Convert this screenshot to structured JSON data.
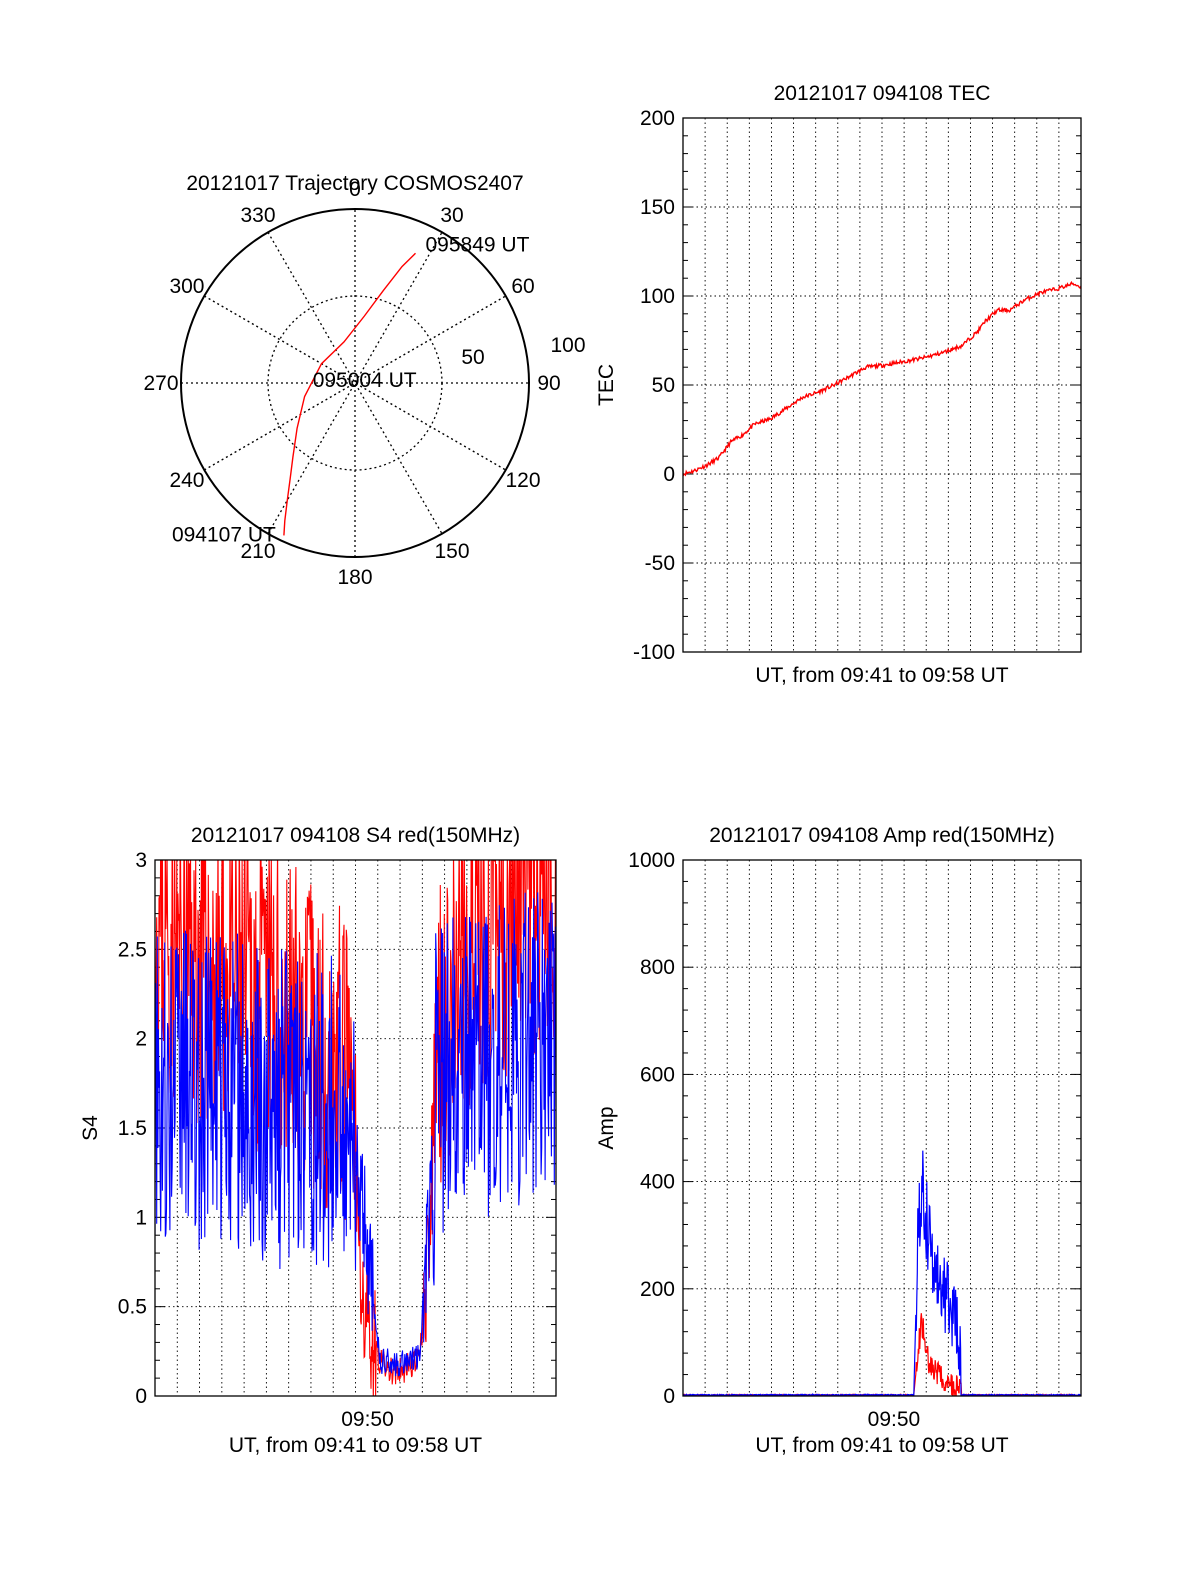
{
  "chart_data": [
    {
      "id": "polar",
      "type": "polar-trajectory",
      "title": "20121017 Trajectory COSMOS2407",
      "azimuth_labels": [
        "0",
        "30",
        "60",
        "90",
        "120",
        "150",
        "180",
        "210",
        "240",
        "270",
        "300",
        "330"
      ],
      "radial_labels": [
        "50",
        "100"
      ],
      "radial_max": 90,
      "series": [
        {
          "color": "#ff0000",
          "points": [
            {
              "az": 205,
              "el": 3
            },
            {
              "az": 207,
              "el": 10
            },
            {
              "az": 210,
              "el": 20
            },
            {
              "az": 214,
              "el": 30
            },
            {
              "az": 220,
              "el": 40
            },
            {
              "az": 232,
              "el": 52
            },
            {
              "az": 255,
              "el": 63
            },
            {
              "az": 300,
              "el": 70
            },
            {
              "az": 345,
              "el": 68
            },
            {
              "az": 8,
              "el": 55
            },
            {
              "az": 17,
              "el": 40
            },
            {
              "az": 22,
              "el": 25
            },
            {
              "az": 25,
              "el": 16
            }
          ]
        }
      ],
      "annotations": [
        {
          "text": "095849 UT",
          "az": 25,
          "el": 16
        },
        {
          "text": "095004 UT",
          "az": 90,
          "el": 85
        },
        {
          "text": "094107 UT",
          "az": 205,
          "el": 3
        }
      ]
    },
    {
      "id": "tec",
      "type": "line",
      "title": "20121017 094108 TEC",
      "xlabel": "UT, from 09:41 to 09:58 UT",
      "ylabel": "TEC",
      "xlim": [
        0,
        1
      ],
      "ylim": [
        -100,
        200
      ],
      "yticks": [
        -100,
        -50,
        0,
        50,
        100,
        150,
        200
      ],
      "xticks": [],
      "series": [
        {
          "color": "#ff0000",
          "x": [
            0,
            0.03,
            0.06,
            0.09,
            0.12,
            0.15,
            0.18,
            0.22,
            0.26,
            0.3,
            0.34,
            0.38,
            0.42,
            0.46,
            0.5,
            0.55,
            0.6,
            0.65,
            0.7,
            0.74,
            0.76,
            0.79,
            0.82,
            0.86,
            0.9,
            0.94,
            0.98,
            1.0
          ],
          "y": [
            0,
            2,
            5,
            9,
            18,
            22,
            28,
            31,
            37,
            43,
            46,
            50,
            55,
            60,
            61,
            63,
            65,
            68,
            72,
            80,
            86,
            92,
            92,
            98,
            102,
            104,
            107,
            105
          ]
        }
      ]
    },
    {
      "id": "s4",
      "type": "line",
      "title": "20121017 094108 S4 red(150MHz)",
      "xlabel": "UT, from 09:41 to 09:58 UT",
      "ylabel": "S4",
      "xlim": [
        0,
        1
      ],
      "ylim": [
        0,
        3
      ],
      "yticks": [
        "0",
        "0.5",
        "1",
        "1.5",
        "2",
        "2.5",
        "3"
      ],
      "xticks": [
        {
          "x": 0.53,
          "label": "09:50"
        }
      ],
      "series": [
        {
          "name_hidden": "red",
          "color": "#ff0000",
          "x": [
            0,
            0.1,
            0.2,
            0.3,
            0.4,
            0.48,
            0.5,
            0.52,
            0.56,
            0.58,
            0.6,
            0.66,
            0.69,
            0.7,
            0.75,
            0.8,
            0.85,
            0.9,
            0.95,
            1.0
          ],
          "y": [
            2.6,
            2.4,
            2.3,
            2.2,
            2.0,
            1.8,
            1.2,
            0.5,
            0.2,
            0.15,
            0.12,
            0.2,
            1.0,
            2.0,
            2.3,
            2.5,
            2.6,
            2.7,
            2.7,
            2.8
          ]
        },
        {
          "name_hidden": "blue",
          "color": "#0000ff",
          "x": [
            0,
            0.1,
            0.2,
            0.3,
            0.4,
            0.48,
            0.5,
            0.52,
            0.56,
            0.58,
            0.6,
            0.66,
            0.69,
            0.7,
            0.75,
            0.8,
            0.85,
            0.9,
            0.95,
            1.0
          ],
          "y": [
            1.8,
            1.7,
            1.7,
            1.6,
            1.6,
            1.6,
            1.5,
            1.0,
            0.2,
            0.2,
            0.18,
            0.22,
            1.2,
            1.7,
            1.8,
            1.8,
            1.9,
            1.9,
            2.0,
            2.0
          ]
        }
      ]
    },
    {
      "id": "amp",
      "type": "line",
      "title": "20121017 094108 Amp red(150MHz)",
      "xlabel": "UT, from 09:41 to 09:58 UT",
      "ylabel": "Amp",
      "xlim": [
        0,
        1
      ],
      "ylim": [
        0,
        1000
      ],
      "yticks": [
        "0",
        "200",
        "400",
        "600",
        "800",
        "1000"
      ],
      "xticks": [
        {
          "x": 0.53,
          "label": "09:50"
        }
      ],
      "series": [
        {
          "name_hidden": "red",
          "color": "#ff0000",
          "x": [
            0,
            0.58,
            0.59,
            0.6,
            0.61,
            0.62,
            0.63,
            0.64,
            0.65,
            0.66,
            0.67,
            0.68,
            0.69,
            0.7,
            1.0
          ],
          "y": [
            2,
            2,
            80,
            140,
            90,
            60,
            50,
            40,
            30,
            25,
            20,
            18,
            15,
            2,
            2
          ]
        },
        {
          "name_hidden": "blue",
          "color": "#0000ff",
          "x": [
            0,
            0.58,
            0.59,
            0.6,
            0.61,
            0.62,
            0.63,
            0.64,
            0.65,
            0.66,
            0.67,
            0.68,
            0.69,
            0.7,
            1.0
          ],
          "y": [
            2,
            2,
            300,
            400,
            330,
            290,
            240,
            220,
            200,
            180,
            170,
            150,
            140,
            2,
            2
          ]
        }
      ]
    }
  ]
}
